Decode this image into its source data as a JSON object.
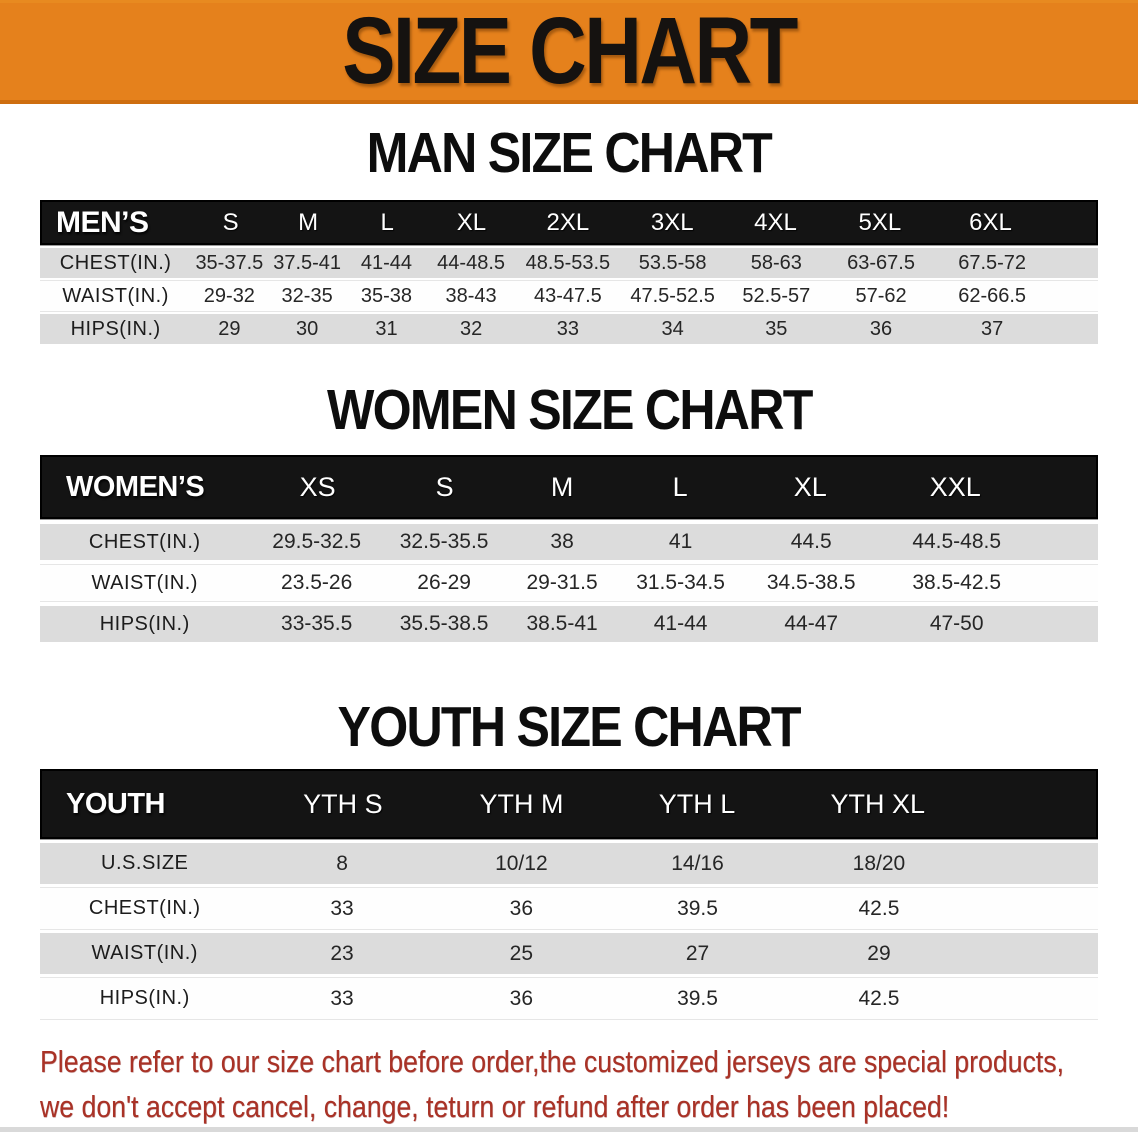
{
  "banner": {
    "title": "SIZE CHART"
  },
  "tables": [
    {
      "id": "men",
      "title": "MAN SIZE CHART",
      "header": {
        "label": "MEN’S",
        "sizes": [
          "S",
          "M",
          "L",
          "XL",
          "2XL",
          "3XL",
          "4XL",
          "5XL",
          "6XL"
        ]
      },
      "rows": [
        {
          "label": "CHEST(IN.)",
          "values": [
            "35-37.5",
            "37.5-41",
            "41-44",
            "44-48.5",
            "48.5-53.5",
            "53.5-58",
            "58-63",
            "63-67.5",
            "67.5-72"
          ]
        },
        {
          "label": "WAIST(IN.)",
          "values": [
            "29-32",
            "32-35",
            "35-38",
            "38-43",
            "43-47.5",
            "47.5-52.5",
            "52.5-57",
            "57-62",
            "62-66.5"
          ]
        },
        {
          "label": "HIPS(IN.)",
          "values": [
            "29",
            "30",
            "31",
            "32",
            "33",
            "34",
            "35",
            "36",
            "37"
          ]
        }
      ]
    },
    {
      "id": "women",
      "title": "WOMEN SIZE CHART",
      "header": {
        "label": "WOMEN’S",
        "sizes": [
          "XS",
          "S",
          "M",
          "L",
          "XL",
          "XXL"
        ]
      },
      "rows": [
        {
          "label": "CHEST(IN.)",
          "values": [
            "29.5-32.5",
            "32.5-35.5",
            "38",
            "41",
            "44.5",
            "44.5-48.5"
          ]
        },
        {
          "label": "WAIST(IN.)",
          "values": [
            "23.5-26",
            "26-29",
            "29-31.5",
            "31.5-34.5",
            "34.5-38.5",
            "38.5-42.5"
          ]
        },
        {
          "label": "HIPS(IN.)",
          "values": [
            "33-35.5",
            "35.5-38.5",
            "38.5-41",
            "41-44",
            "44-47",
            "47-50"
          ]
        }
      ]
    },
    {
      "id": "youth",
      "title": "YOUTH SIZE CHART",
      "header": {
        "label": "YOUTH",
        "sizes": [
          "YTH S",
          "YTH M",
          "YTH L",
          "YTH XL"
        ]
      },
      "rows": [
        {
          "label": "U.S.SIZE",
          "values": [
            "8",
            "10/12",
            "14/16",
            "18/20"
          ]
        },
        {
          "label": "CHEST(IN.)",
          "values": [
            "33",
            "36",
            "39.5",
            "42.5"
          ]
        },
        {
          "label": "WAIST(IN.)",
          "values": [
            "23",
            "25",
            "27",
            "29"
          ]
        },
        {
          "label": "HIPS(IN.)",
          "values": [
            "33",
            "36",
            "39.5",
            "42.5"
          ]
        }
      ]
    }
  ],
  "disclaimer": {
    "line1": "Please refer to our size chart before order,the customized jerseys are special products,",
    "line2": "we don't accept cancel, change, teturn or refund after order has been placed!"
  },
  "colors": {
    "banner_orange": "#E5811C",
    "header_black": "#141414",
    "row_gray": "#DCDCDC",
    "disclaimer_red": "#A93226"
  }
}
